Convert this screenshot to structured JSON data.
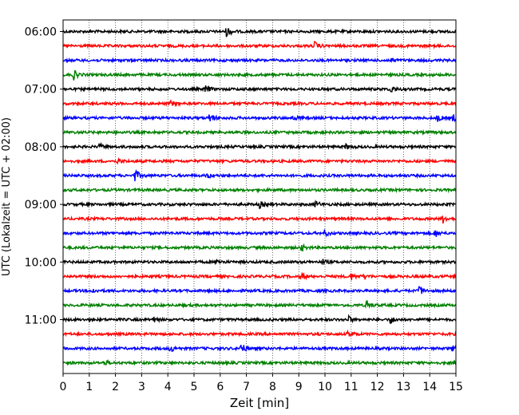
{
  "chart_data": {
    "type": "line",
    "subtype": "helicorder",
    "title": "",
    "xlabel": "Zeit  [min]",
    "ylabel": "UTC (Lokalzeit = UTC + 02:00)",
    "xlim": [
      0,
      15
    ],
    "x_ticks": [
      0,
      1,
      2,
      3,
      4,
      5,
      6,
      7,
      8,
      9,
      10,
      11,
      12,
      13,
      14,
      15
    ],
    "x_tick_labels": [
      "0",
      "1",
      "2",
      "3",
      "4",
      "5",
      "6",
      "7",
      "8",
      "9",
      "10",
      "11",
      "12",
      "13",
      "14",
      "15"
    ],
    "y_tick_labels": [
      "06:00",
      "07:00",
      "08:00",
      "09:00",
      "10:00",
      "11:00"
    ],
    "y_tick_rows": [
      0,
      4,
      8,
      12,
      16,
      20
    ],
    "grid": "x-dotted",
    "trace_minutes": 15,
    "row_count": 24,
    "colors": [
      "#000000",
      "#ff0000",
      "#0000ff",
      "#008000"
    ],
    "series": [
      {
        "start": "06:00",
        "events": [
          [
            6.25,
            7
          ]
        ]
      },
      {
        "start": "06:15",
        "events": [
          [
            9.6,
            5
          ]
        ]
      },
      {
        "start": "06:30",
        "events": [
          [
            12.5,
            3
          ]
        ]
      },
      {
        "start": "06:45",
        "events": [
          [
            0.4,
            6
          ]
        ]
      },
      {
        "start": "07:00",
        "events": [
          [
            5.45,
            5
          ],
          [
            12.5,
            5
          ]
        ]
      },
      {
        "start": "07:15",
        "events": [
          [
            4.1,
            3
          ]
        ]
      },
      {
        "start": "07:30",
        "events": [
          [
            5.6,
            7
          ],
          [
            8.8,
            3
          ],
          [
            14.3,
            4
          ],
          [
            14.9,
            4
          ]
        ]
      },
      {
        "start": "07:45",
        "events": []
      },
      {
        "start": "08:00",
        "events": [
          [
            1.4,
            3
          ],
          [
            10.8,
            3
          ]
        ]
      },
      {
        "start": "08:15",
        "events": [
          [
            2.1,
            3
          ]
        ]
      },
      {
        "start": "08:30",
        "events": [
          [
            2.75,
            8
          ],
          [
            5.5,
            3
          ]
        ]
      },
      {
        "start": "08:45",
        "events": []
      },
      {
        "start": "09:00",
        "events": [
          [
            7.5,
            4
          ],
          [
            9.65,
            4
          ]
        ]
      },
      {
        "start": "09:15",
        "events": [
          [
            14.5,
            5
          ]
        ]
      },
      {
        "start": "09:30",
        "events": [
          [
            10.0,
            4
          ],
          [
            14.2,
            5
          ]
        ]
      },
      {
        "start": "09:45",
        "events": [
          [
            9.1,
            4
          ]
        ]
      },
      {
        "start": "10:00",
        "events": [
          [
            5.9,
            3
          ],
          [
            9.9,
            3
          ]
        ]
      },
      {
        "start": "10:15",
        "events": [
          [
            9.1,
            5
          ],
          [
            11.0,
            4
          ],
          [
            11.5,
            3
          ]
        ]
      },
      {
        "start": "10:30",
        "events": [
          [
            1.1,
            3
          ],
          [
            13.6,
            6
          ]
        ]
      },
      {
        "start": "10:45",
        "events": [
          [
            11.6,
            6
          ]
        ]
      },
      {
        "start": "11:00",
        "events": [
          [
            3.4,
            4
          ],
          [
            10.9,
            4
          ],
          [
            12.5,
            5
          ]
        ]
      },
      {
        "start": "11:15",
        "events": [
          [
            10.9,
            5
          ]
        ]
      },
      {
        "start": "11:30",
        "events": [
          [
            4.1,
            5
          ],
          [
            6.8,
            7
          ],
          [
            14.9,
            4
          ]
        ]
      },
      {
        "start": "11:45",
        "events": [
          [
            1.6,
            3
          ]
        ]
      }
    ]
  }
}
